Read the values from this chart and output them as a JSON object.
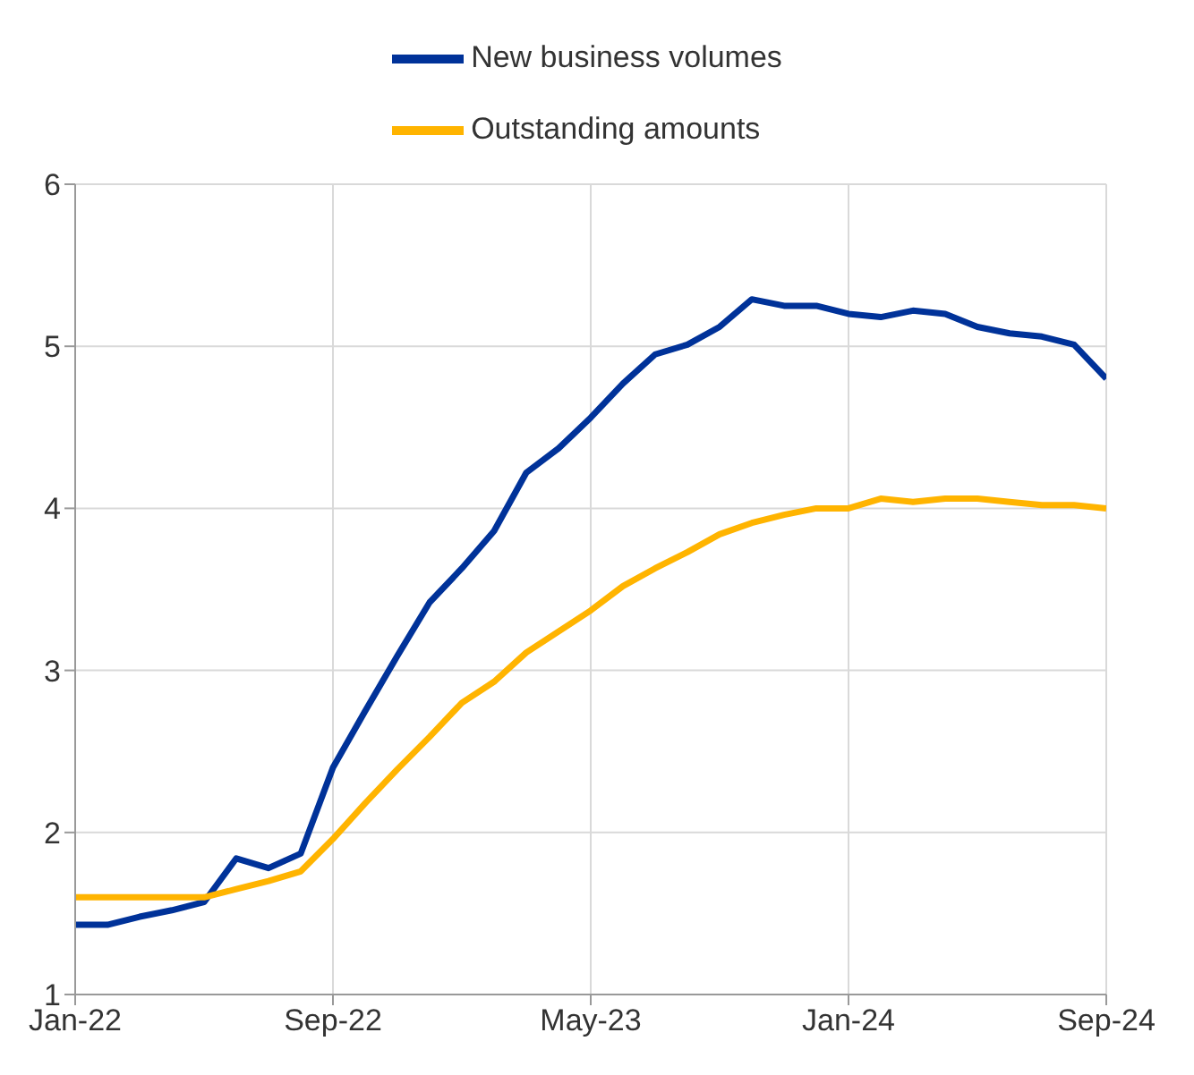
{
  "chart_data": {
    "type": "line",
    "categories": [
      "Jan-22",
      null,
      null,
      null,
      null,
      null,
      null,
      null,
      "Sep-22",
      null,
      null,
      null,
      null,
      null,
      null,
      null,
      "May-23",
      null,
      null,
      null,
      null,
      null,
      null,
      null,
      "Jan-24",
      null,
      null,
      null,
      null,
      null,
      null,
      null,
      "Sep-24"
    ],
    "series": [
      {
        "name": "New business volumes",
        "color": "#003299",
        "values": [
          1.43,
          1.43,
          1.48,
          1.52,
          1.57,
          1.84,
          1.78,
          1.87,
          2.4,
          2.75,
          3.09,
          3.42,
          3.63,
          3.86,
          4.22,
          4.37,
          4.56,
          4.77,
          4.95,
          5.01,
          5.12,
          5.29,
          5.25,
          5.25,
          5.2,
          5.18,
          5.22,
          5.2,
          5.12,
          5.08,
          5.06,
          5.01,
          4.8
        ]
      },
      {
        "name": "Outstanding amounts",
        "color": "#ffb400",
        "values": [
          1.6,
          1.6,
          1.6,
          1.6,
          1.6,
          1.65,
          1.7,
          1.76,
          1.96,
          2.18,
          2.39,
          2.59,
          2.8,
          2.93,
          3.11,
          3.24,
          3.37,
          3.52,
          3.63,
          3.73,
          3.84,
          3.91,
          3.96,
          4.0,
          4.0,
          4.06,
          4.04,
          4.06,
          4.06,
          4.04,
          4.02,
          4.02,
          4.0
        ]
      }
    ],
    "ylim": [
      1,
      6
    ],
    "yticks": [
      1,
      2,
      3,
      4,
      5,
      6
    ],
    "grid": true,
    "legend": "top",
    "marker": "none",
    "line_style": "solid"
  }
}
